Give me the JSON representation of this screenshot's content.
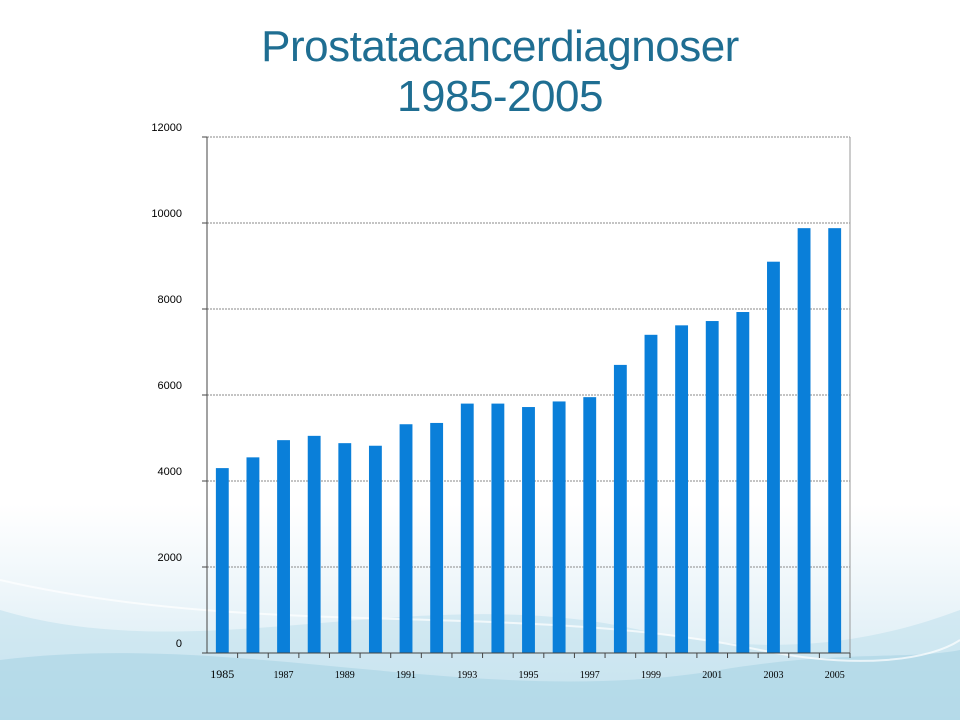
{
  "slide": {
    "title_line1": "Prostatacancerdiagnoser",
    "title_line2": "1985-2005",
    "title_color": "#1f6e92",
    "bar_color": "#0a7fd9",
    "background_accent": "#cfe7f1"
  },
  "chart_data": {
    "type": "bar",
    "title": "Prostatacancerdiagnoser 1985-2005",
    "xlabel": "",
    "ylabel": "",
    "ylim": [
      0,
      12000
    ],
    "yticks": [
      0,
      2000,
      4000,
      6000,
      8000,
      10000,
      12000
    ],
    "ytick_labels": [
      "0",
      "2000",
      "4000",
      "6000",
      "8000",
      "10000",
      "12000"
    ],
    "grid": true,
    "legend": "none",
    "categories": [
      "1985",
      "1986",
      "1987",
      "1988",
      "1989",
      "1990",
      "1991",
      "1992",
      "1993",
      "1994",
      "1995",
      "1996",
      "1997",
      "1998",
      "1999",
      "2000",
      "2001",
      "2002",
      "2003",
      "2004",
      "2005"
    ],
    "xtick_labels": [
      "1985",
      "",
      "1987",
      "",
      "1989",
      "",
      "1991",
      "",
      "1993",
      "",
      "1995",
      "",
      "1997",
      "",
      "1999",
      "",
      "2001",
      "",
      "2003",
      "",
      "2005"
    ],
    "values": [
      4300,
      4550,
      4950,
      5050,
      4880,
      4820,
      5320,
      5350,
      5800,
      5800,
      5720,
      5850,
      5950,
      6700,
      7400,
      7620,
      7720,
      7930,
      9100,
      9880,
      9880
    ]
  }
}
